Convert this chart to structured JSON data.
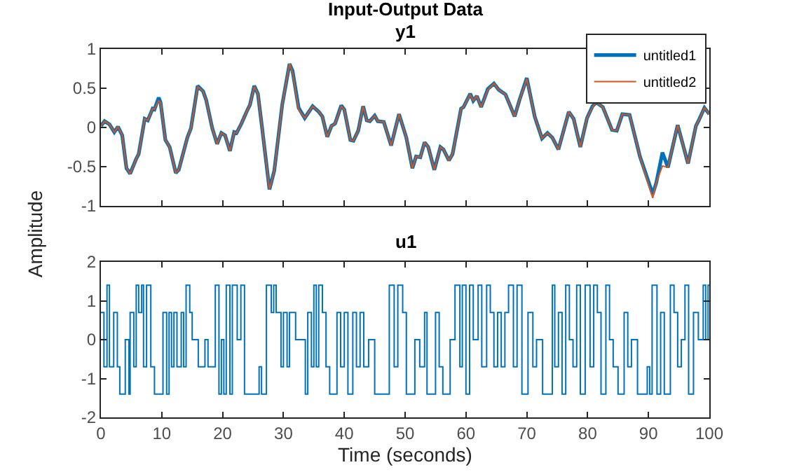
{
  "chart_data": [
    {
      "type": "line",
      "title": "Input-Output Data",
      "subtitle": "y1",
      "ylabel": "Amplitude",
      "legend": "top right",
      "tick_labels": "y",
      "grid": false,
      "xlim": [
        0,
        100
      ],
      "xticks": [
        0,
        10,
        20,
        30,
        40,
        50,
        60,
        70,
        80,
        90,
        100
      ],
      "ylim": [
        -1,
        1
      ],
      "yticks": [
        -1,
        -0.5,
        0,
        0.5,
        1
      ],
      "x": [
        0,
        0.6,
        1.4,
        2.2,
        2.8,
        3.5,
        4.2,
        4.8,
        5.8,
        6.2,
        7.2,
        7.7,
        8.5,
        8.8,
        9.5,
        9.8,
        10.6,
        11.3,
        12.3,
        12.8,
        14.2,
        14.8,
        15.9,
        16.8,
        17.3,
        18.3,
        19.1,
        19.8,
        20.4,
        21.2,
        21.9,
        22.3,
        23.1,
        24,
        24.5,
        25.2,
        25.8,
        26.5,
        27.7,
        28.5,
        29.8,
        31,
        31.5,
        32.5,
        33.5,
        34.8,
        35.8,
        36.4,
        37.2,
        37.9,
        38.5,
        39.5,
        40,
        41,
        41.5,
        42.3,
        43.1,
        43.7,
        44.2,
        45,
        45.5,
        46.5,
        47.7,
        49,
        50.2,
        51.2,
        51.8,
        52.5,
        53.2,
        53.8,
        54.8,
        55.8,
        56.3,
        57.2,
        57.8,
        59.2,
        59.6,
        60.7,
        61.2,
        61.8,
        62.5,
        63.6,
        64.6,
        65.4,
        66.5,
        68,
        68.8,
        70,
        71.3,
        72.5,
        73.4,
        74.2,
        75.2,
        76.9,
        77.7,
        78.8,
        79.9,
        80.8,
        81.4,
        82.5,
        84,
        84.8,
        85.7,
        86.9,
        88.6,
        90.7,
        91.3,
        92.3,
        93.2,
        94.8,
        96.5,
        97.8,
        98.2,
        99.2,
        100
      ],
      "series": [
        {
          "name": "untitled1",
          "color": "#0072bd",
          "values": [
            0.02,
            0.08,
            0.04,
            -0.06,
            0.01,
            -0.1,
            -0.52,
            -0.59,
            -0.4,
            -0.34,
            0.11,
            0.09,
            0.24,
            0.23,
            0.38,
            0.32,
            -0.16,
            -0.25,
            -0.58,
            -0.54,
            -0.13,
            -0.01,
            0.53,
            0.46,
            0.35,
            -0.01,
            -0.21,
            -0.07,
            -0.1,
            -0.3,
            -0.06,
            -0.07,
            0.05,
            0.21,
            0.29,
            0.53,
            0.43,
            -0.01,
            -0.79,
            -0.55,
            0.29,
            0.81,
            0.72,
            0.25,
            0.12,
            0.27,
            0.2,
            0.14,
            -0.12,
            0.02,
            0.05,
            0.28,
            0.23,
            -0.16,
            -0.17,
            -0.04,
            0.27,
            0.09,
            0.08,
            0.15,
            0.08,
            0.07,
            -0.23,
            0.17,
            -0.13,
            -0.52,
            -0.37,
            -0.38,
            -0.19,
            -0.25,
            -0.54,
            -0.25,
            -0.28,
            -0.42,
            -0.34,
            0.24,
            0.26,
            0.43,
            0.34,
            0.4,
            0.26,
            0.49,
            0.56,
            0.48,
            0.42,
            0.14,
            0.35,
            0.63,
            0.14,
            -0.14,
            -0.07,
            -0.13,
            -0.28,
            0.2,
            0.11,
            -0.25,
            0.12,
            0.27,
            0.32,
            0.26,
            -0.03,
            -0.04,
            0.17,
            0.16,
            -0.37,
            -0.85,
            -0.7,
            -0.32,
            -0.51,
            0.03,
            -0.46,
            0.02,
            0.08,
            0.25,
            0.17
          ]
        },
        {
          "name": "untitled2",
          "color": "#d95319",
          "values": [
            0.02,
            0.08,
            0.04,
            -0.06,
            0.01,
            -0.1,
            -0.52,
            -0.59,
            -0.4,
            -0.34,
            0.11,
            0.09,
            0.24,
            0.23,
            0.34,
            0.32,
            -0.16,
            -0.25,
            -0.58,
            -0.54,
            -0.13,
            -0.01,
            0.52,
            0.46,
            0.35,
            -0.01,
            -0.21,
            -0.07,
            -0.1,
            -0.3,
            -0.06,
            -0.07,
            0.05,
            0.21,
            0.29,
            0.52,
            0.43,
            -0.01,
            -0.79,
            -0.55,
            0.29,
            0.81,
            0.7,
            0.23,
            0.12,
            0.27,
            0.2,
            0.14,
            -0.12,
            0.02,
            0.05,
            0.27,
            0.23,
            -0.16,
            -0.17,
            -0.04,
            0.27,
            0.09,
            0.08,
            0.15,
            0.08,
            0.07,
            -0.23,
            0.17,
            -0.13,
            -0.52,
            -0.37,
            -0.38,
            -0.19,
            -0.25,
            -0.54,
            -0.25,
            -0.28,
            -0.42,
            -0.34,
            0.24,
            0.26,
            0.42,
            0.34,
            0.4,
            0.26,
            0.48,
            0.56,
            0.48,
            0.42,
            0.14,
            0.35,
            0.62,
            0.14,
            -0.14,
            -0.07,
            -0.13,
            -0.28,
            0.2,
            0.11,
            -0.25,
            0.12,
            0.26,
            0.32,
            0.26,
            -0.03,
            -0.04,
            0.17,
            0.16,
            -0.37,
            -0.9,
            -0.7,
            -0.49,
            -0.51,
            0.03,
            -0.46,
            0.02,
            0.08,
            0.25,
            0.17
          ]
        }
      ]
    },
    {
      "type": "step",
      "title": "u1",
      "xlabel": "Time (seconds)",
      "legend": false,
      "grid": false,
      "xlim": [
        0,
        100
      ],
      "xticks": [
        0,
        10,
        20,
        30,
        40,
        50,
        60,
        70,
        80,
        90,
        100
      ],
      "ylim": [
        -2,
        2
      ],
      "yticks": [
        -2,
        -1,
        0,
        1,
        2
      ],
      "x": [
        0,
        0.5,
        1.0,
        1.4,
        2.1,
        2.7,
        3.1,
        4.0,
        4.6,
        4.8,
        5.4,
        5.8,
        6.2,
        6.7,
        7.0,
        7.5,
        8.2,
        8.8,
        10.2,
        10.8,
        11.2,
        11.6,
        12.0,
        12.5,
        13.2,
        13.6,
        14.0,
        14.6,
        15.0,
        16.0,
        17.1,
        17.6,
        18.8,
        19.4,
        19.8,
        20.2,
        20.6,
        21.2,
        21.6,
        22.4,
        23.0,
        23.6,
        26.0,
        26.4,
        27.2,
        28.0,
        28.4,
        28.8,
        29.6,
        30.0,
        30.6,
        31.0,
        32.0,
        33.6,
        34.0,
        34.6,
        35.0,
        35.4,
        35.8,
        36.4,
        37.0,
        37.6,
        38.8,
        39.4,
        40.0,
        40.6,
        41.4,
        42.0,
        42.6,
        43.2,
        44.0,
        45.0,
        47.4,
        48.2,
        48.8,
        49.6,
        50.2,
        51.6,
        52.4,
        53.2,
        53.6,
        55.0,
        55.6,
        56.2,
        57.4,
        58.2,
        59.0,
        59.4,
        60.0,
        60.6,
        61.2,
        62.0,
        62.6,
        63.4,
        64.0,
        64.6,
        65.2,
        65.8,
        66.4,
        67.0,
        67.8,
        68.4,
        69.2,
        70.2,
        71.0,
        71.6,
        72.6,
        74.2,
        74.6,
        75.2,
        75.8,
        76.4,
        77.0,
        77.6,
        78.2,
        78.8,
        79.6,
        80.4,
        81.0,
        81.6,
        82.2,
        83.0,
        83.6,
        84.2,
        85.0,
        86.0,
        86.6,
        87.2,
        88.2,
        89.8,
        90.2,
        90.6,
        91.4,
        92.0,
        92.6,
        93.6,
        94.2,
        94.8,
        95.4,
        96.0,
        96.6,
        97.4,
        98.2,
        99.0,
        99.4,
        99.8,
        100
      ],
      "series": [
        {
          "color": "#0072bd",
          "values": [
            0.7,
            -0.7,
            1.4,
            -0.7,
            0.7,
            -0.7,
            -1.4,
            0,
            -1.4,
            0.7,
            -0.7,
            1.4,
            0.7,
            1.4,
            -0.7,
            1.4,
            -0.7,
            -1.4,
            0.7,
            -1.4,
            0.7,
            -0.7,
            0.7,
            -0.7,
            0.7,
            -0.7,
            1.4,
            0.7,
            0,
            -0.7,
            0,
            -0.7,
            1.4,
            -1.4,
            0,
            -1.4,
            1.4,
            -1.4,
            1.4,
            0,
            1.4,
            -1.4,
            -0.7,
            -1.4,
            1.4,
            0.7,
            1.4,
            0.7,
            -0.7,
            0.7,
            -0.7,
            0.7,
            0,
            -1.4,
            0.7,
            -0.7,
            1.4,
            -0.7,
            1.4,
            0.7,
            -0.7,
            -1.4,
            0.7,
            -0.7,
            0.7,
            -1.4,
            0.7,
            -0.7,
            0.7,
            -0.7,
            0,
            -1.4,
            1.4,
            -0.7,
            1.4,
            0.7,
            -1.4,
            0,
            -0.7,
            0.7,
            -1.4,
            0.7,
            -0.7,
            -1.4,
            0,
            1.4,
            -0.7,
            1.4,
            -1.4,
            1.4,
            0,
            1.4,
            -0.7,
            1.4,
            0.7,
            -0.7,
            0.7,
            -0.7,
            0.7,
            1.4,
            -0.7,
            1.4,
            -1.4,
            0.7,
            -0.7,
            0,
            -1.4,
            1.4,
            -0.7,
            0.7,
            -1.4,
            1.4,
            0,
            -0.7,
            1.4,
            -1.4,
            1.4,
            -0.7,
            1.4,
            0.7,
            -1.4,
            1.4,
            0,
            -0.7,
            -1.4,
            0.7,
            -0.7,
            0,
            -1.4,
            -0.7,
            -1.4,
            1.4,
            -1.4,
            0.7,
            -1.4,
            1.4,
            0.7,
            -0.7,
            0,
            1.4,
            -1.4,
            0.7,
            0,
            1.4,
            0,
            1.4,
            1.4
          ]
        }
      ]
    }
  ]
}
